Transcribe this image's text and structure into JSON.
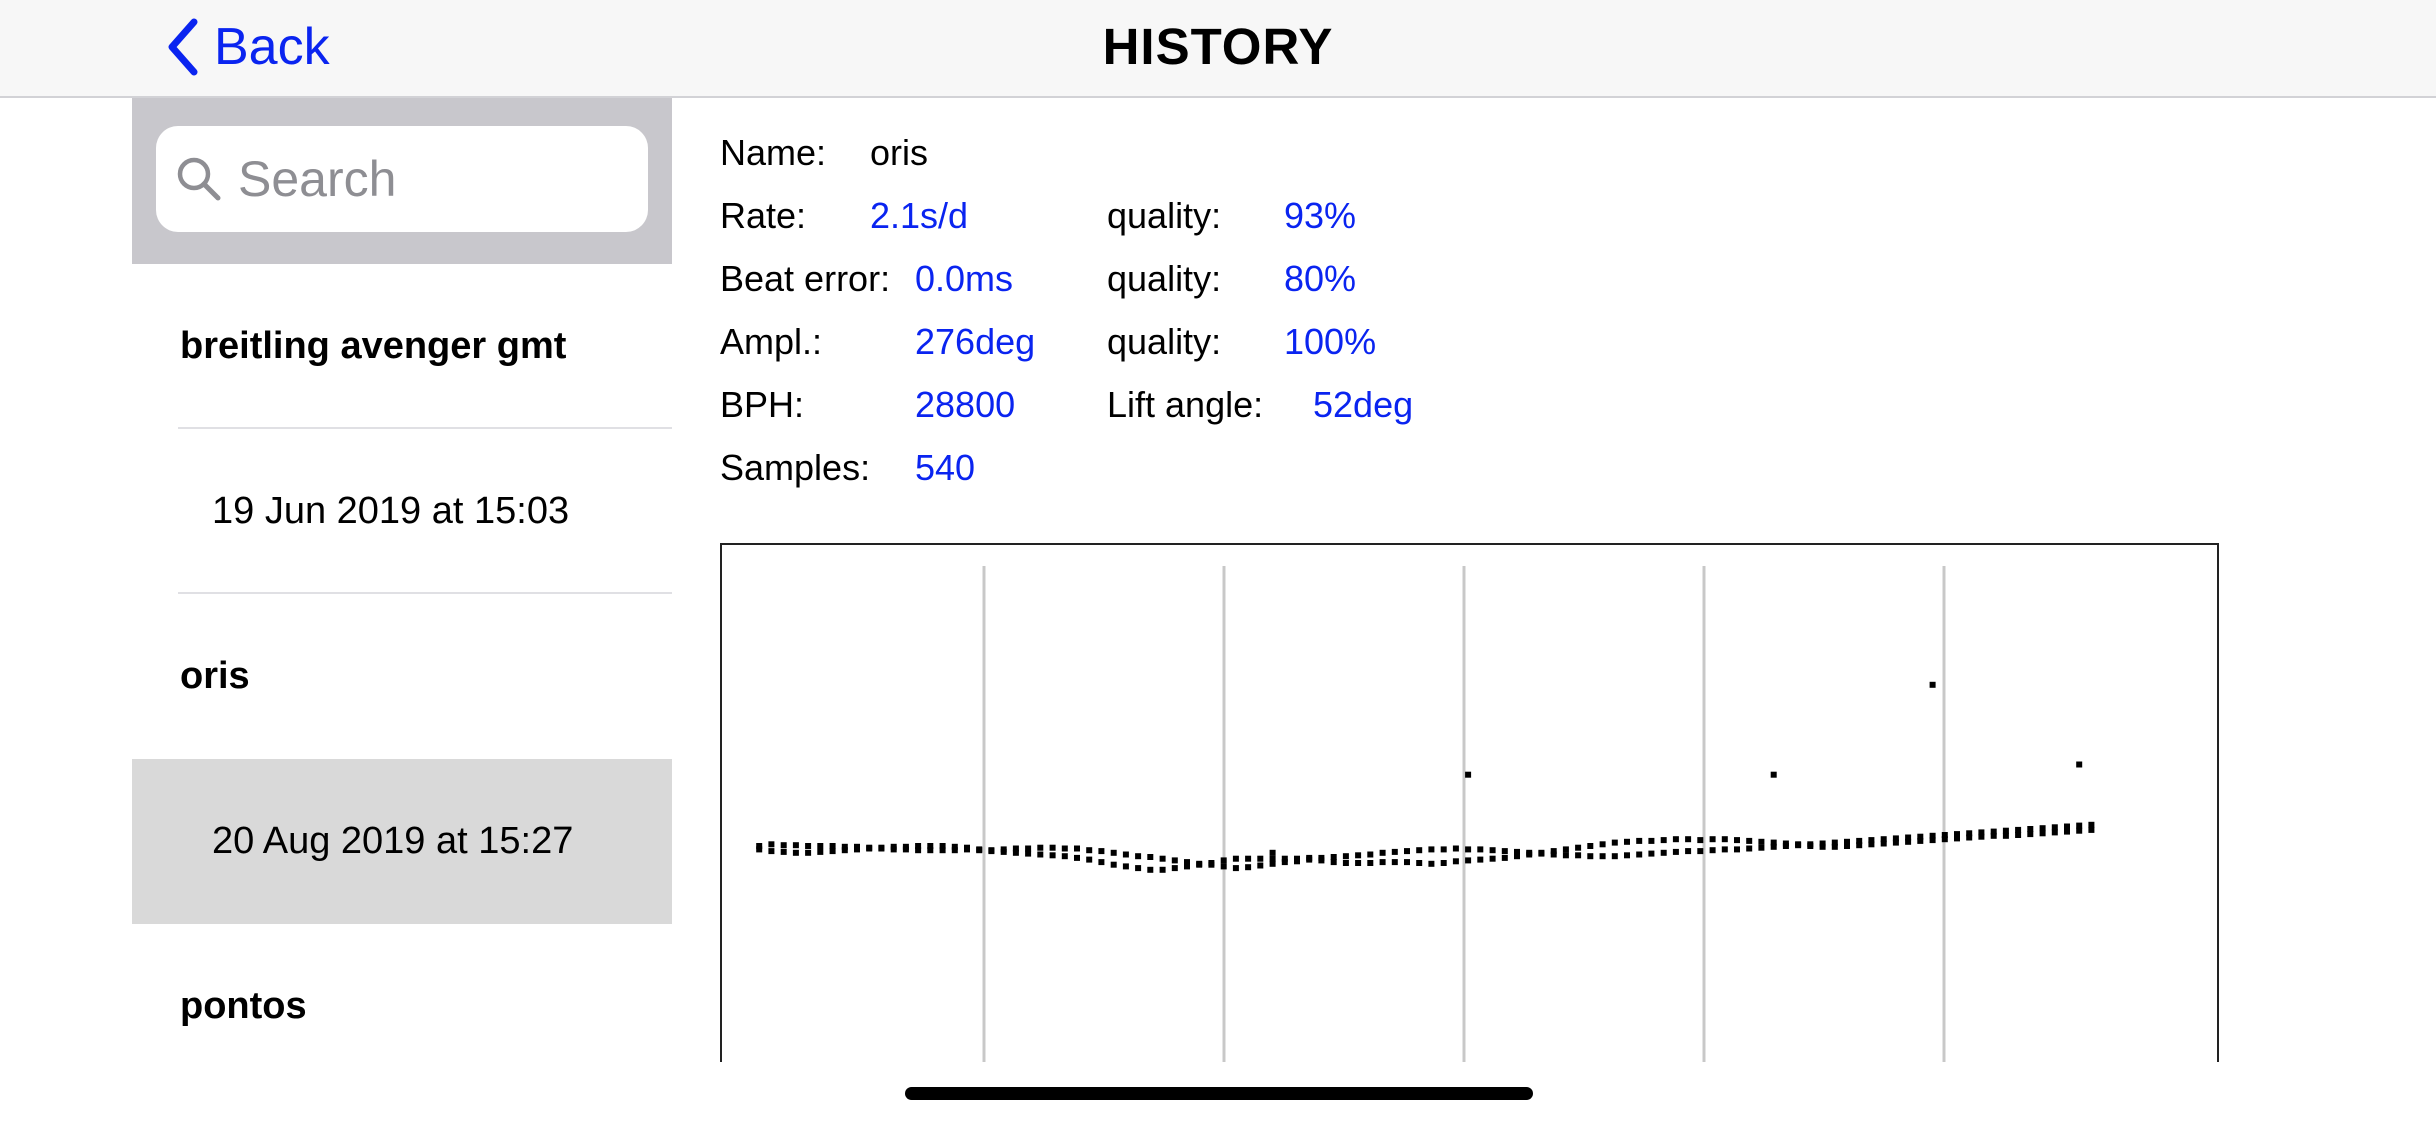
{
  "nav": {
    "back_icon": "chevron-left-icon",
    "back_label": "Back",
    "title": "HISTORY",
    "accent_color": "#0a24f0"
  },
  "search": {
    "icon": "search-icon",
    "placeholder": "Search",
    "value": ""
  },
  "sidebar": {
    "items": [
      {
        "kind": "header",
        "label": "breitling avenger gmt"
      },
      {
        "kind": "date",
        "label": "19 Jun 2019 at 15:03"
      },
      {
        "kind": "header",
        "label": "oris"
      },
      {
        "kind": "date",
        "label": "20 Aug 2019 at 15:27",
        "selected": true
      },
      {
        "kind": "header",
        "label": "pontos"
      }
    ]
  },
  "detail": {
    "name_label": "Name:",
    "name_value": "oris",
    "rate_label": "Rate:",
    "rate_value": "2.1s/d",
    "rate_quality_label": "quality:",
    "rate_quality_value": "93%",
    "beat_label": "Beat error:",
    "beat_value": "0.0ms",
    "beat_quality_label": "quality:",
    "beat_quality_value": "80%",
    "ampl_label": "Ampl.:",
    "ampl_value": "276deg",
    "ampl_quality_label": "quality:",
    "ampl_quality_value": "100%",
    "bph_label": "BPH:",
    "bph_value": "28800",
    "lift_label": "Lift angle:",
    "lift_value": "52deg",
    "samples_label": "Samples:",
    "samples_value": "540"
  },
  "chart_data": {
    "type": "scatter",
    "title": "",
    "xlabel": "",
    "ylabel": "",
    "x_gridlines": 5,
    "grid": "vertical lines",
    "series": [
      {
        "values": [
          [
            1,
            0.1
          ],
          [
            2,
            0.12
          ],
          [
            3,
            0.11
          ],
          [
            4,
            0.11
          ],
          [
            5,
            0.1
          ],
          [
            6,
            0.1
          ],
          [
            7,
            0.1
          ],
          [
            8,
            0.09
          ],
          [
            9,
            0.09
          ],
          [
            10,
            0.08
          ],
          [
            11,
            0.07
          ],
          [
            12,
            0.06
          ],
          [
            13,
            0.06
          ],
          [
            14,
            0.05
          ],
          [
            15,
            0.05
          ],
          [
            16,
            0.05
          ],
          [
            17,
            0.05
          ],
          [
            18,
            0.06
          ],
          [
            19,
            0.05
          ],
          [
            20,
            0.05
          ],
          [
            21,
            0.06
          ],
          [
            22,
            0.07
          ],
          [
            23,
            0.07
          ],
          [
            24,
            0.08
          ],
          [
            25,
            0.08
          ],
          [
            26,
            0.07
          ],
          [
            27,
            0.07
          ],
          [
            28,
            0.05
          ],
          [
            29,
            0.04
          ],
          [
            30,
            0.02
          ],
          [
            31,
            0.0
          ],
          [
            32,
            -0.02
          ],
          [
            33,
            -0.03
          ],
          [
            34,
            -0.05
          ],
          [
            35,
            -0.07
          ],
          [
            36,
            -0.09
          ],
          [
            37,
            -0.11
          ],
          [
            38,
            -0.12
          ],
          [
            39,
            -0.14
          ],
          [
            40,
            -0.16
          ],
          [
            41,
            -0.15
          ],
          [
            42,
            -0.13
          ],
          [
            43,
            -0.11
          ],
          [
            44,
            -0.09
          ],
          [
            45,
            -0.08
          ],
          [
            46,
            -0.06
          ],
          [
            47,
            -0.07
          ],
          [
            48,
            -0.09
          ],
          [
            49,
            -0.1
          ],
          [
            50,
            -0.1
          ],
          [
            51,
            -0.1
          ],
          [
            52,
            -0.09
          ],
          [
            53,
            -0.09
          ],
          [
            54,
            -0.09
          ],
          [
            55,
            -0.1
          ],
          [
            56,
            -0.11
          ],
          [
            57,
            -0.1
          ],
          [
            58,
            -0.08
          ],
          [
            59,
            -0.07
          ],
          [
            60,
            -0.06
          ],
          [
            61,
            -0.05
          ],
          [
            62,
            -0.04
          ],
          [
            63,
            -0.02
          ],
          [
            64,
            0.0
          ],
          [
            65,
            0.02
          ],
          [
            66,
            0.04
          ],
          [
            67,
            0.06
          ],
          [
            68,
            0.08
          ],
          [
            69,
            0.1
          ],
          [
            70,
            0.12
          ],
          [
            71,
            0.14
          ],
          [
            72,
            0.15
          ],
          [
            73,
            0.16
          ],
          [
            74,
            0.16
          ],
          [
            75,
            0.17
          ],
          [
            76,
            0.18
          ],
          [
            77,
            0.18
          ],
          [
            78,
            0.17
          ],
          [
            79,
            0.18
          ],
          [
            80,
            0.18
          ],
          [
            81,
            0.17
          ],
          [
            82,
            0.16
          ],
          [
            83,
            0.15
          ],
          [
            84,
            0.14
          ],
          [
            85,
            0.13
          ],
          [
            86,
            0.12
          ],
          [
            87,
            0.1
          ],
          [
            88,
            0.09
          ],
          [
            89,
            0.09
          ],
          [
            90,
            0.1
          ],
          [
            91,
            0.11
          ],
          [
            92,
            0.12
          ],
          [
            93,
            0.13
          ],
          [
            94,
            0.14
          ],
          [
            95,
            0.15
          ],
          [
            96,
            0.16
          ],
          [
            97,
            0.17
          ],
          [
            98,
            0.18
          ],
          [
            99,
            0.19
          ],
          [
            100,
            0.2
          ],
          [
            101,
            0.21
          ],
          [
            102,
            0.22
          ],
          [
            103,
            0.22
          ],
          [
            104,
            0.23
          ],
          [
            105,
            0.24
          ],
          [
            106,
            0.25
          ],
          [
            107,
            0.26
          ],
          [
            108,
            0.27
          ],
          [
            109,
            0.28
          ],
          [
            110,
            0.29
          ]
        ]
      },
      {
        "values": [
          [
            1,
            0.06
          ],
          [
            2,
            0.04
          ],
          [
            3,
            0.03
          ],
          [
            4,
            0.02
          ],
          [
            5,
            0.02
          ],
          [
            6,
            0.03
          ],
          [
            7,
            0.04
          ],
          [
            8,
            0.05
          ],
          [
            9,
            0.06
          ],
          [
            10,
            0.07
          ],
          [
            11,
            0.08
          ],
          [
            12,
            0.09
          ],
          [
            13,
            0.09
          ],
          [
            14,
            0.1
          ],
          [
            15,
            0.1
          ],
          [
            16,
            0.1
          ],
          [
            17,
            0.09
          ],
          [
            18,
            0.08
          ],
          [
            19,
            0.06
          ],
          [
            20,
            0.04
          ],
          [
            21,
            0.03
          ],
          [
            22,
            0.02
          ],
          [
            23,
            0.01
          ],
          [
            24,
            0.0
          ],
          [
            25,
            -0.01
          ],
          [
            26,
            -0.02
          ],
          [
            27,
            -0.04
          ],
          [
            28,
            -0.06
          ],
          [
            29,
            -0.09
          ],
          [
            30,
            -0.12
          ],
          [
            31,
            -0.14
          ],
          [
            32,
            -0.16
          ],
          [
            33,
            -0.18
          ],
          [
            34,
            -0.18
          ],
          [
            35,
            -0.16
          ],
          [
            36,
            -0.14
          ],
          [
            37,
            -0.12
          ],
          [
            38,
            -0.1
          ],
          [
            39,
            -0.07
          ],
          [
            40,
            -0.05
          ],
          [
            41,
            -0.05
          ],
          [
            42,
            -0.05
          ],
          [
            43,
            -0.05
          ],
          [
            44,
            -0.05
          ],
          [
            45,
            -0.05
          ],
          [
            46,
            -0.04
          ],
          [
            47,
            -0.04
          ],
          [
            48,
            -0.03
          ],
          [
            49,
            -0.02
          ],
          [
            50,
            -0.01
          ],
          [
            51,
            0.0
          ],
          [
            52,
            0.02
          ],
          [
            53,
            0.03
          ],
          [
            54,
            0.04
          ],
          [
            55,
            0.05
          ],
          [
            56,
            0.06
          ],
          [
            57,
            0.06
          ],
          [
            58,
            0.07
          ],
          [
            59,
            0.06
          ],
          [
            60,
            0.06
          ],
          [
            61,
            0.05
          ],
          [
            62,
            0.04
          ],
          [
            63,
            0.03
          ],
          [
            64,
            0.02
          ],
          [
            65,
            0.01
          ],
          [
            66,
            0.0
          ],
          [
            67,
            -0.01
          ],
          [
            68,
            -0.01
          ],
          [
            69,
            -0.02
          ],
          [
            70,
            -0.02
          ],
          [
            71,
            -0.02
          ],
          [
            72,
            -0.01
          ],
          [
            73,
            0.0
          ],
          [
            74,
            0.01
          ],
          [
            75,
            0.02
          ],
          [
            76,
            0.03
          ],
          [
            77,
            0.04
          ],
          [
            78,
            0.04
          ],
          [
            79,
            0.05
          ],
          [
            80,
            0.06
          ],
          [
            81,
            0.06
          ],
          [
            82,
            0.07
          ],
          [
            83,
            0.08
          ],
          [
            84,
            0.09
          ],
          [
            85,
            0.1
          ],
          [
            86,
            0.11
          ],
          [
            87,
            0.12
          ],
          [
            88,
            0.13
          ],
          [
            89,
            0.14
          ],
          [
            90,
            0.15
          ],
          [
            91,
            0.16
          ],
          [
            92,
            0.17
          ],
          [
            93,
            0.18
          ],
          [
            94,
            0.19
          ],
          [
            95,
            0.2
          ],
          [
            96,
            0.21
          ],
          [
            97,
            0.22
          ],
          [
            98,
            0.23
          ],
          [
            99,
            0.24
          ],
          [
            100,
            0.25
          ],
          [
            101,
            0.26
          ],
          [
            102,
            0.27
          ],
          [
            103,
            0.28
          ],
          [
            104,
            0.29
          ],
          [
            105,
            0.3
          ],
          [
            106,
            0.31
          ],
          [
            107,
            0.32
          ],
          [
            108,
            0.33
          ],
          [
            109,
            0.34
          ],
          [
            110,
            0.35
          ]
        ]
      },
      {
        "values": [
          [
            43,
            0.02
          ],
          [
            59,
            0.94
          ],
          [
            84,
            0.94
          ],
          [
            97,
            2.0
          ],
          [
            109,
            1.06
          ]
        ]
      }
    ],
    "xlim": [
      0,
      117
    ],
    "ylim": [
      -3.2,
      3.4
    ]
  }
}
